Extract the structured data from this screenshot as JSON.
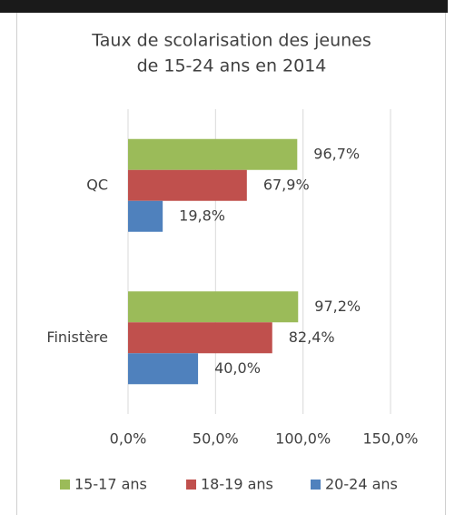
{
  "chart_data": {
    "type": "hbar",
    "title": [
      "Taux de scolarisation des jeunes",
      "de 15-24 ans en 2014"
    ],
    "categories": [
      "QC",
      "Finistère"
    ],
    "series": [
      {
        "name": "15-17 ans",
        "color": "#9bbb59",
        "values": [
          96.7,
          97.2
        ],
        "value_labels": [
          "96,7%",
          "97,2%"
        ]
      },
      {
        "name": "18-19 ans",
        "color": "#c0504d",
        "values": [
          67.9,
          82.4
        ],
        "value_labels": [
          "67,9%",
          "82,4%"
        ]
      },
      {
        "name": "20-24 ans",
        "color": "#4f81bd",
        "values": [
          19.8,
          40.0
        ],
        "value_labels": [
          "19,8%",
          "40,0%"
        ]
      }
    ],
    "xlim": [
      0,
      150
    ],
    "xticks": [
      {
        "value": 0,
        "label": "0,0%"
      },
      {
        "value": 50,
        "label": "50,0%"
      },
      {
        "value": 100,
        "label": "100,0%"
      },
      {
        "value": 150,
        "label": "150,0%"
      }
    ],
    "grid": true,
    "legend": "bottom"
  }
}
